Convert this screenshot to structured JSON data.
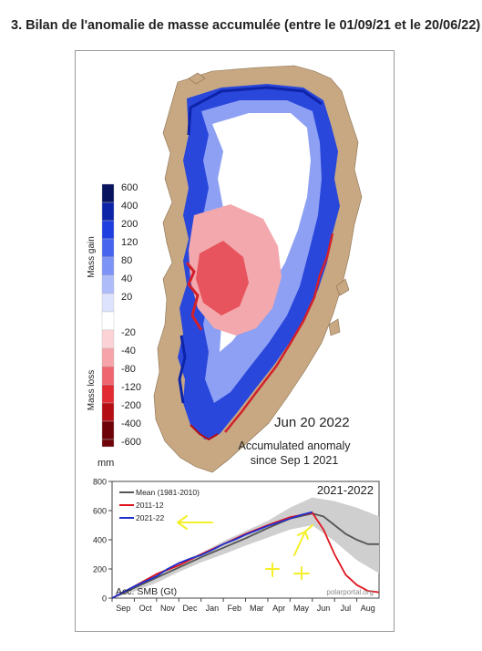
{
  "heading": "3. Bilan de l'anomalie de masse accumulée (entre le 01/09/21 et le 20/06/22)",
  "map": {
    "date_label": "Jun 20 2022",
    "caption_line1": "Accumulated anomaly",
    "caption_line2": "since Sep 1 2021",
    "legend": {
      "gain_label": "Mass gain",
      "loss_label": "Mass loss",
      "unit": "mm",
      "levels": [
        {
          "label": "600",
          "color": "#08135e"
        },
        {
          "label": "400",
          "color": "#0d23a8"
        },
        {
          "label": "200",
          "color": "#1f3fe0"
        },
        {
          "label": "120",
          "color": "#4764ee"
        },
        {
          "label": "80",
          "color": "#7d93f5"
        },
        {
          "label": "40",
          "color": "#aebdfa"
        },
        {
          "label": "20",
          "color": "#dde3fd"
        },
        {
          "label": "-20",
          "color": "#ffffff"
        },
        {
          "label": "-40",
          "color": "#fbd3d6"
        },
        {
          "label": "-80",
          "color": "#f6a3a9"
        },
        {
          "label": "-120",
          "color": "#ef6670"
        },
        {
          "label": "-200",
          "color": "#e22a33"
        },
        {
          "label": "-400",
          "color": "#b40d14"
        },
        {
          "label": "-600",
          "color": "#6e0409"
        }
      ]
    },
    "colors": {
      "land": "#c7a882",
      "ice_gain": "#1c38d8",
      "ice_loss": "#e04048",
      "outline": "#777777"
    }
  },
  "chart_data": {
    "type": "line",
    "title": "2021-2022",
    "ylabel": "Acc. SMB (Gt)",
    "source": "polarportal.org",
    "ylim": [
      0,
      800
    ],
    "yticks": [
      0,
      200,
      400,
      600,
      800
    ],
    "months": [
      "Sep",
      "Oct",
      "Nov",
      "Dec",
      "Jan",
      "Feb",
      "Mar",
      "Apr",
      "May",
      "Jun",
      "Jul",
      "Aug"
    ],
    "xlim": [
      0,
      12
    ],
    "band": {
      "x": [
        0,
        1,
        2,
        3,
        4,
        5,
        6,
        7,
        8,
        9,
        10,
        11,
        12
      ],
      "low": [
        0,
        45,
        105,
        180,
        245,
        300,
        360,
        415,
        470,
        500,
        390,
        260,
        170
      ],
      "high": [
        0,
        90,
        170,
        245,
        310,
        390,
        460,
        530,
        620,
        690,
        665,
        620,
        560
      ]
    },
    "series": [
      {
        "name": "Mean (1981-2010)",
        "color": "#555555",
        "x": [
          0,
          1,
          2,
          3,
          4,
          5,
          6,
          7,
          8,
          9,
          9.5,
          10,
          10.5,
          11,
          11.5,
          12
        ],
        "y": [
          0,
          70,
          140,
          210,
          280,
          345,
          410,
          480,
          545,
          580,
          560,
          500,
          440,
          400,
          370,
          370
        ]
      },
      {
        "name": "2011-12",
        "color": "#e0141e",
        "x": [
          0,
          1,
          2,
          3,
          4,
          5,
          6,
          7,
          8,
          9,
          9.5,
          10,
          10.5,
          11,
          11.5,
          12
        ],
        "y": [
          0,
          80,
          165,
          225,
          300,
          370,
          440,
          500,
          555,
          585,
          470,
          300,
          160,
          90,
          50,
          40
        ]
      },
      {
        "name": "2021-22",
        "color": "#1e2fd0",
        "x": [
          0,
          0.5,
          1,
          1.5,
          2,
          2.5,
          3,
          3.5,
          4,
          4.5,
          5,
          5.5,
          6,
          6.5,
          7,
          7.5,
          8,
          8.5,
          9
        ],
        "y": [
          0,
          40,
          80,
          115,
          150,
          200,
          240,
          270,
          295,
          330,
          370,
          400,
          435,
          465,
          495,
          520,
          545,
          570,
          590
        ]
      }
    ]
  },
  "annotations": {
    "arrow_color": "#f4ef2a"
  }
}
